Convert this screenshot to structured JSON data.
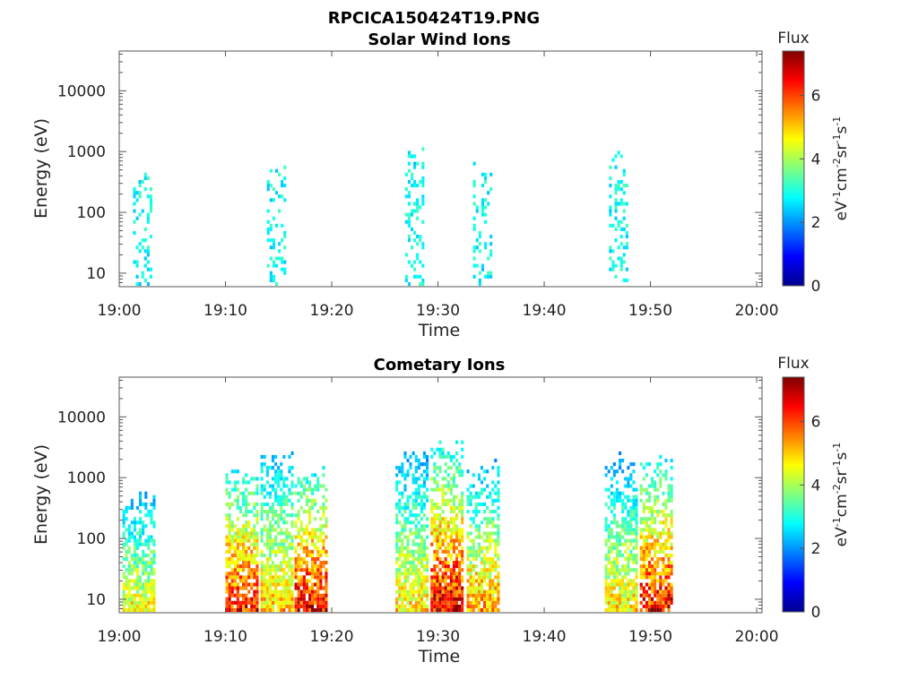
{
  "figure": {
    "filename_title": "RPCICA150424T19.PNG"
  },
  "chart_data": [
    {
      "type": "heatmap",
      "title": "Solar Wind Ions",
      "xlabel": "Time",
      "ylabel": "Energy (eV)",
      "x_tick_labels": [
        "19:00",
        "19:10",
        "19:20",
        "19:30",
        "19:40",
        "19:50",
        "20:00"
      ],
      "x_range_minutes": [
        0,
        60.5
      ],
      "y_tick_labels": [
        "10",
        "100",
        "1000",
        "10000"
      ],
      "y_tick_values": [
        10,
        100,
        1000,
        10000
      ],
      "y_scale": "log",
      "ylim": [
        6,
        45000
      ],
      "colorbar": {
        "label": "Flux",
        "units": "eV-1cm-2sr-1s-1",
        "ticks": [
          "0",
          "2",
          "4",
          "6"
        ],
        "range": [
          0,
          7.4
        ],
        "colormap": "jet"
      },
      "bursts": [
        {
          "t": 2.2,
          "e_max": 300,
          "flux": 2.8
        },
        {
          "t": 14.8,
          "e_max": 500,
          "flux": 2.8
        },
        {
          "t": 27.8,
          "e_max": 800,
          "flux": 2.6
        },
        {
          "t": 34.2,
          "e_max": 400,
          "flux": 2.8
        },
        {
          "t": 47.0,
          "e_max": 900,
          "flux": 2.6
        }
      ]
    },
    {
      "type": "heatmap",
      "title": "Cometary Ions",
      "xlabel": "Time",
      "ylabel": "Energy (eV)",
      "x_tick_labels": [
        "19:00",
        "19:10",
        "19:20",
        "19:30",
        "19:40",
        "19:50",
        "20:00"
      ],
      "x_range_minutes": [
        0,
        60.5
      ],
      "y_tick_labels": [
        "10",
        "100",
        "1000",
        "10000"
      ],
      "y_tick_values": [
        10,
        100,
        1000,
        10000
      ],
      "y_scale": "log",
      "ylim": [
        6,
        45000
      ],
      "colorbar": {
        "label": "Flux",
        "units": "eV-1cm-2sr-1s-1",
        "ticks": [
          "0",
          "2",
          "4",
          "6"
        ],
        "range": [
          0,
          7.4
        ],
        "colormap": "jet"
      },
      "bursts": [
        {
          "t": 1.8,
          "e_max": 500,
          "flux": 4.8
        },
        {
          "t": 11.5,
          "e_max": 1000,
          "flux": 6.5
        },
        {
          "t": 14.8,
          "e_max": 2500,
          "flux": 5.2
        },
        {
          "t": 18.0,
          "e_max": 1000,
          "flux": 6.8
        },
        {
          "t": 27.5,
          "e_max": 2000,
          "flux": 5.0
        },
        {
          "t": 30.8,
          "e_max": 2500,
          "flux": 6.8
        },
        {
          "t": 34.2,
          "e_max": 1200,
          "flux": 5.5
        },
        {
          "t": 47.2,
          "e_max": 1500,
          "flux": 5.0
        },
        {
          "t": 50.5,
          "e_max": 1500,
          "flux": 6.6
        }
      ]
    }
  ]
}
